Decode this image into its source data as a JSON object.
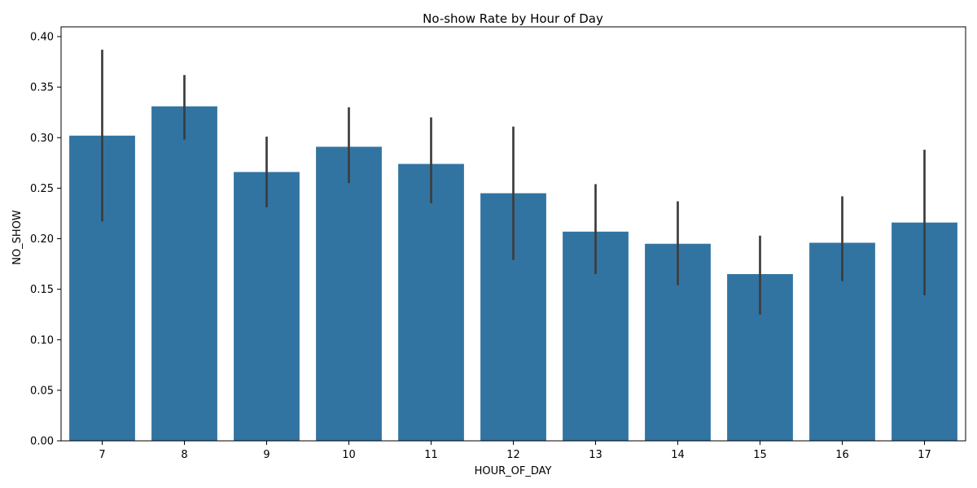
{
  "chart_data": {
    "type": "bar",
    "title": "No-show Rate by Hour of Day",
    "xlabel": "HOUR_OF_DAY",
    "ylabel": "NO_SHOW",
    "categories": [
      "7",
      "8",
      "9",
      "10",
      "11",
      "12",
      "13",
      "14",
      "15",
      "16",
      "17"
    ],
    "values": [
      0.302,
      0.331,
      0.266,
      0.291,
      0.274,
      0.245,
      0.207,
      0.195,
      0.165,
      0.196,
      0.216
    ],
    "error_low": [
      0.217,
      0.298,
      0.231,
      0.255,
      0.235,
      0.179,
      0.165,
      0.154,
      0.125,
      0.158,
      0.144
    ],
    "error_high": [
      0.387,
      0.362,
      0.301,
      0.33,
      0.32,
      0.311,
      0.254,
      0.237,
      0.203,
      0.242,
      0.288
    ],
    "ylim": [
      0,
      0.4
    ],
    "yticks": [
      "0.00",
      "0.05",
      "0.10",
      "0.15",
      "0.20",
      "0.25",
      "0.30",
      "0.35",
      "0.40"
    ],
    "ytick_values": [
      0,
      0.05,
      0.1,
      0.15,
      0.2,
      0.25,
      0.3,
      0.35,
      0.4
    ],
    "grid": false,
    "bar_color": "#3274a1",
    "error_color": "#3d3d3d"
  }
}
